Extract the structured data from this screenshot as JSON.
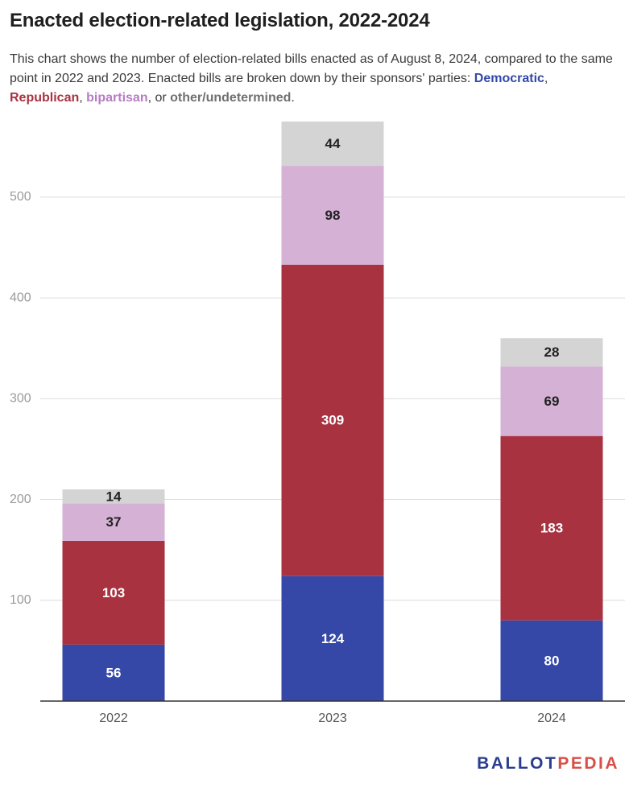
{
  "title": "Enacted election-related legislation, 2022-2024",
  "subtitle": {
    "intro": "This chart shows the number of election-related bills enacted as of August 8, 2024, compared to the same point in 2022 and 2023. Enacted bills are broken down by their sponsors' parties:",
    "legend": [
      {
        "label": "Democratic",
        "color": "#3548a8"
      },
      {
        "label": "Republican",
        "color": "#a83240"
      },
      {
        "label": "bipartisan",
        "color": "#b57cc4"
      },
      {
        "label": "other/undetermined",
        "color": "#707070"
      }
    ],
    "sep1": ", ",
    "sep2": ", ",
    "sep3": ", or ",
    "end": "."
  },
  "chart_data": {
    "type": "bar",
    "stacked": true,
    "categories": [
      "2022",
      "2023",
      "2024"
    ],
    "series": [
      {
        "name": "Democratic",
        "color": "#3548a8",
        "label_color": "#ffffff",
        "values": [
          56,
          124,
          80
        ]
      },
      {
        "name": "Republican",
        "color": "#a83240",
        "label_color": "#ffffff",
        "values": [
          103,
          309,
          183
        ]
      },
      {
        "name": "bipartisan",
        "color": "#d5b1d5",
        "label_color": "#222222",
        "values": [
          37,
          98,
          69
        ]
      },
      {
        "name": "other/undetermined",
        "color": "#d4d4d4",
        "label_color": "#222222",
        "values": [
          14,
          44,
          28
        ]
      }
    ],
    "yticks": [
      "100",
      "200",
      "300",
      "400",
      "500"
    ],
    "ylim": [
      0,
      575
    ],
    "grid": true
  },
  "logo": {
    "part1": "BALLOT",
    "part2": "PEDIA",
    "color1": "#2b3d8f",
    "color2": "#d84f47"
  }
}
